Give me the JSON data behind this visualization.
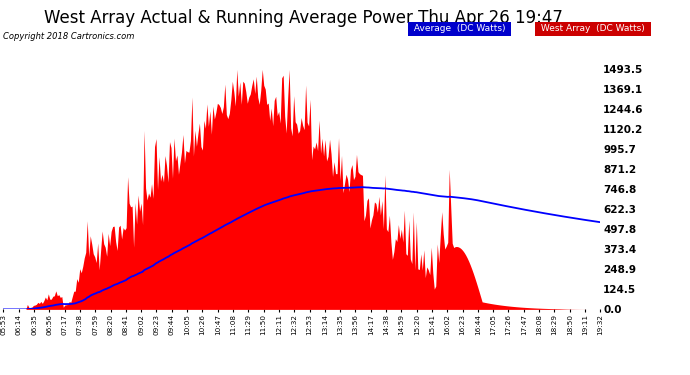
{
  "title": "West Array Actual & Running Average Power Thu Apr 26 19:47",
  "copyright": "Copyright 2018 Cartronics.com",
  "ylabel_right": [
    "0.0",
    "124.5",
    "248.9",
    "373.4",
    "497.8",
    "622.3",
    "746.8",
    "871.2",
    "995.7",
    "1120.2",
    "1244.6",
    "1369.1",
    "1493.5"
  ],
  "ymax": 1493.5,
  "ymin": 0.0,
  "xtick_labels": [
    "05:53",
    "06:14",
    "06:35",
    "06:56",
    "07:17",
    "07:38",
    "07:59",
    "08:20",
    "08:41",
    "09:02",
    "09:23",
    "09:44",
    "10:05",
    "10:26",
    "10:47",
    "11:08",
    "11:29",
    "11:50",
    "12:11",
    "12:32",
    "12:53",
    "13:14",
    "13:35",
    "13:56",
    "14:17",
    "14:38",
    "14:59",
    "15:20",
    "15:41",
    "16:02",
    "16:23",
    "16:44",
    "17:05",
    "17:26",
    "17:47",
    "18:08",
    "18:29",
    "18:50",
    "19:11",
    "19:32"
  ],
  "legend_labels": [
    "Average  (DC Watts)",
    "West Array  (DC Watts)"
  ],
  "legend_colors_bg": [
    "#0000cc",
    "#cc0000"
  ],
  "legend_text_color": "#ffffff",
  "background_color": "#ffffff",
  "grid_color": "#bbbbbb",
  "fill_color": "#ff0000",
  "line_color": "#0000ff",
  "title_fontsize": 12,
  "axis_bg_color": "#ffffff"
}
